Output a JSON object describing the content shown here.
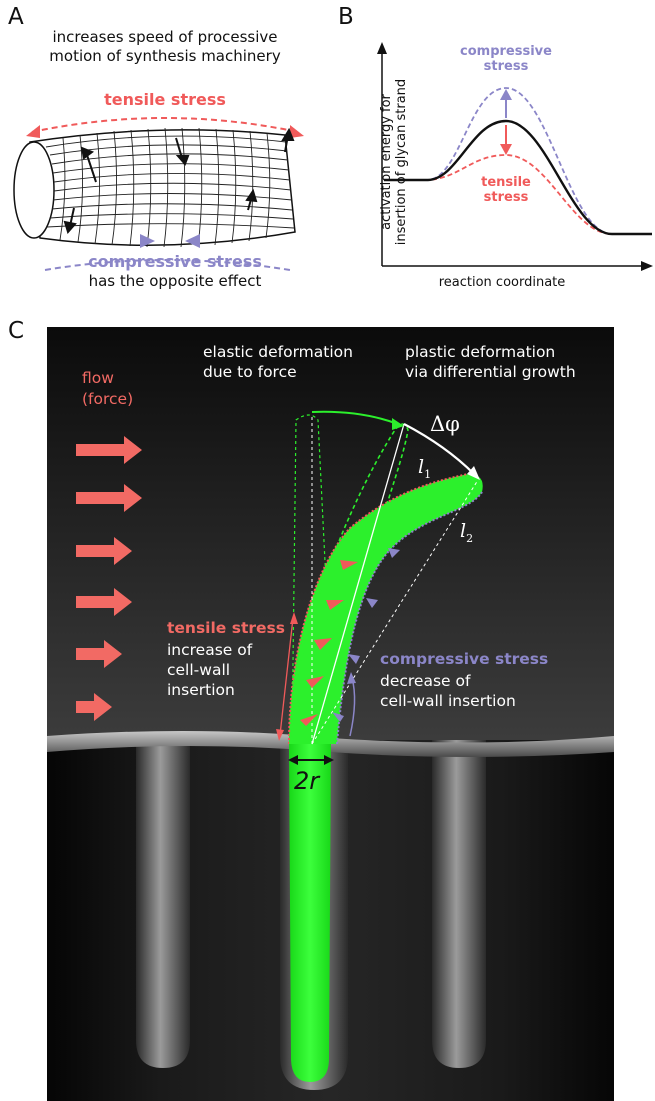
{
  "panelA": {
    "letter": "A",
    "caption_top_1": "increases speed of processive",
    "caption_top_2": "motion of synthesis machinery",
    "tensile_label": "tensile stress",
    "compressive_label": "compressive stress",
    "caption_bottom": "has the opposite effect"
  },
  "panelB": {
    "letter": "B",
    "ylabel_1": "activation energy for",
    "ylabel_2": "insertion of glycan strand",
    "xlabel": "reaction coordinate",
    "compressive_1": "compressive",
    "compressive_2": "stress",
    "tensile_1": "tensile",
    "tensile_2": "stress"
  },
  "panelC": {
    "letter": "C",
    "flow_1": "flow",
    "flow_2": "(force)",
    "elastic_1": "elastic deformation",
    "elastic_2": "due to force",
    "plastic_1": "plastic deformation",
    "plastic_2": "via differential growth",
    "delta_phi": "Δφ",
    "l1": "l",
    "l1_sub": "1",
    "l2": "l",
    "l2_sub": "2",
    "tensile_title": "tensile stress",
    "tensile_desc_1": "increase of",
    "tensile_desc_2": "cell-wall",
    "tensile_desc_3": "insertion",
    "compressive_title": "compressive stress",
    "compressive_desc_1": "decrease of",
    "compressive_desc_2": "cell-wall insertion",
    "diameter": "2r"
  },
  "colors": {
    "tensile": "#f05a5a",
    "compressive": "#8b86c8",
    "cell": "#22ee22",
    "background_dark": "#141414"
  }
}
